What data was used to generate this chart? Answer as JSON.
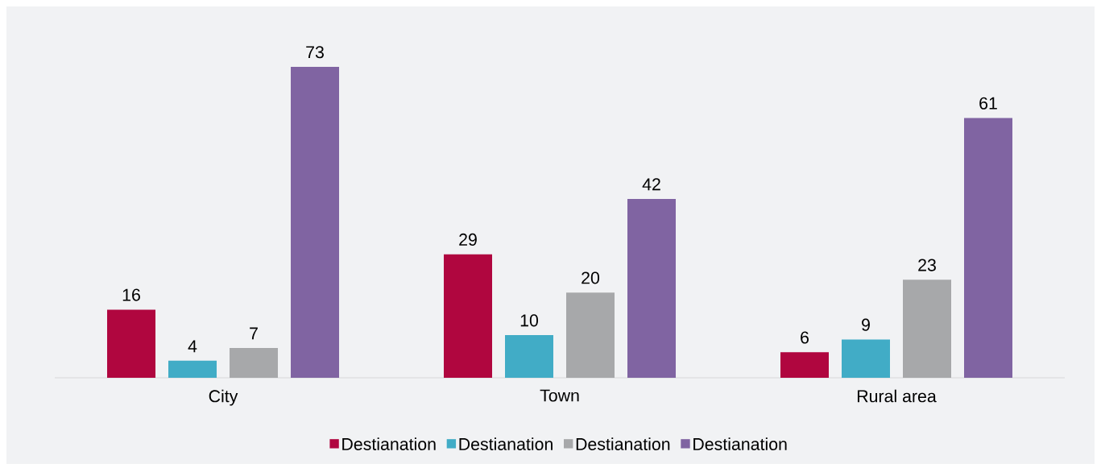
{
  "chart_data": {
    "type": "bar",
    "categories": [
      "City",
      "Town",
      "Rural area"
    ],
    "series": [
      {
        "name": "Destianation",
        "color": "#b0063f",
        "values": [
          16,
          29,
          6
        ]
      },
      {
        "name": "Destianation",
        "color": "#41acc6",
        "values": [
          4,
          10,
          9
        ]
      },
      {
        "name": "Destianation",
        "color": "#a7a8aa",
        "values": [
          7,
          20,
          23
        ]
      },
      {
        "name": "Destianation",
        "color": "#8064a2",
        "values": [
          73,
          42,
          61
        ]
      }
    ],
    "data_labels": true,
    "legend": "bottom"
  }
}
